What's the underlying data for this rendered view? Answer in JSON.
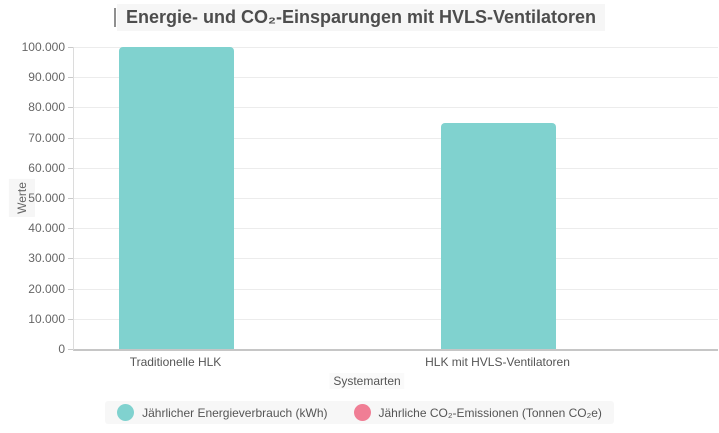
{
  "chart_data": {
    "type": "bar",
    "title": "Energie- und CO₂-Einsparungen mit HVLS-Ventilatoren",
    "xlabel": "Systemarten",
    "ylabel": "Werte",
    "categories": [
      "Traditionelle HLK",
      "HLK mit HVLS-Ventilatoren"
    ],
    "series": [
      {
        "name": "Jährlicher Energieverbrauch (kWh)",
        "color": "#80D2CF",
        "values": [
          100000,
          75000
        ]
      },
      {
        "name": "Jährliche CO₂-Emissionen (Tonnen CO₂e)",
        "color": "#F07E95",
        "values": [
          0,
          0
        ],
        "note": "bars not visible at this axis scale"
      }
    ],
    "ylim": [
      0,
      100000
    ],
    "y_ticks": [
      {
        "value": 0,
        "label": "0"
      },
      {
        "value": 10000,
        "label": "10.000"
      },
      {
        "value": 20000,
        "label": "20.000"
      },
      {
        "value": 30000,
        "label": "30.000"
      },
      {
        "value": 40000,
        "label": "40.000"
      },
      {
        "value": 50000,
        "label": "50.000"
      },
      {
        "value": 60000,
        "label": "60.000"
      },
      {
        "value": 70000,
        "label": "70.000"
      },
      {
        "value": 80000,
        "label": "80.000"
      },
      {
        "value": 90000,
        "label": "90.000"
      },
      {
        "value": 100000,
        "label": "100.000"
      }
    ],
    "grid": true,
    "legend_position": "bottom"
  },
  "colors": {
    "bar_teal": "#80D2CF",
    "bar_pink": "#F07E95",
    "gridline": "#ECECEC",
    "axis_line": "#C6C6C6",
    "tick_text": "#666666",
    "label_text": "#555555",
    "title_text": "#4D4D4D",
    "label_background": "#F6F6F6"
  }
}
